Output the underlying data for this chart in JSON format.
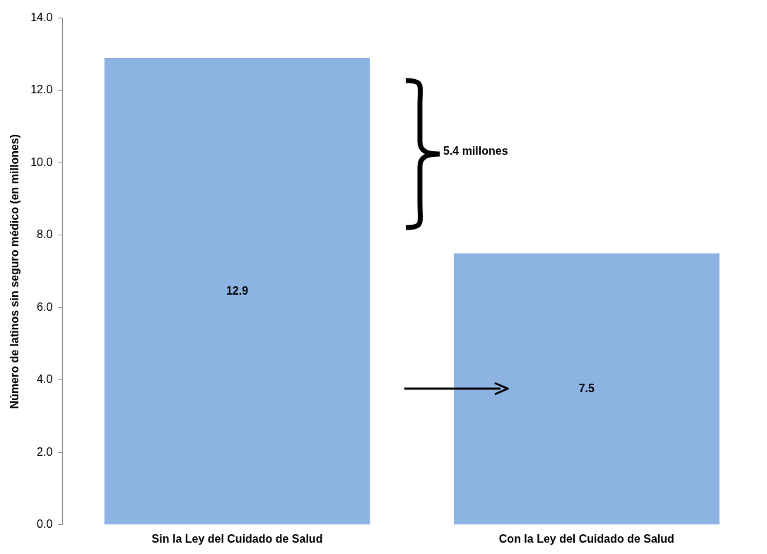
{
  "chart_data": {
    "type": "bar",
    "ylabel": "Número de latinos sin seguro médico (en millones)",
    "categories": [
      "Sin la Ley del Cuidado de Salud",
      "Con la Ley del Cuidado de Salud"
    ],
    "values": [
      12.9,
      7.5
    ],
    "color": "#8db3e2",
    "ylim": [
      0,
      14
    ],
    "yticks": [
      {
        "value": 0,
        "label": "0.0"
      },
      {
        "value": 2,
        "label": "2.0"
      },
      {
        "value": 4,
        "label": "4.0"
      },
      {
        "value": 6,
        "label": "6.0"
      },
      {
        "value": 8,
        "label": "8.0"
      },
      {
        "value": 10,
        "label": "10.0"
      },
      {
        "value": 12,
        "label": "12.0"
      },
      {
        "value": 14,
        "label": "14.0"
      }
    ],
    "data_labels": true,
    "annotations": [
      "5.4 millones"
    ]
  }
}
